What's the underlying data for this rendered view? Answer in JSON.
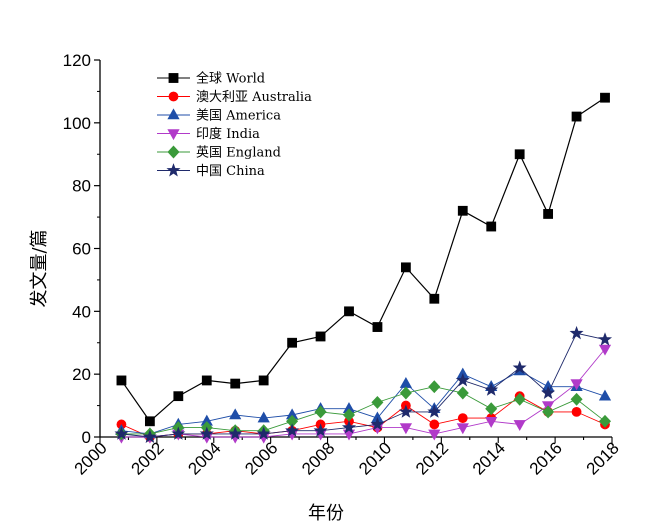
{
  "chart_data": {
    "type": "line",
    "title": "",
    "xlabel": "年份",
    "ylabel": "发文量/篇",
    "xlim": [
      2000,
      2018
    ],
    "ylim": [
      0,
      120
    ],
    "x_ticks": [
      "2000",
      "2002",
      "2004",
      "2006",
      "2008",
      "2010",
      "2012",
      "2014",
      "2016",
      "2018"
    ],
    "y_ticks": [
      "0",
      "20",
      "40",
      "60",
      "80",
      "100",
      "120"
    ],
    "x": [
      2001,
      2002,
      2003,
      2004,
      2005,
      2006,
      2007,
      2008,
      2009,
      2010,
      2011,
      2012,
      2013,
      2014,
      2015,
      2016,
      2017,
      2018
    ],
    "grid": false,
    "legend_position": "top-left",
    "series": [
      {
        "name": "全球 World",
        "color": "#000000",
        "marker": "square",
        "values": [
          18,
          5,
          13,
          18,
          17,
          18,
          30,
          32,
          40,
          35,
          54,
          44,
          72,
          67,
          90,
          71,
          102,
          108
        ]
      },
      {
        "name": "澳大利亚 Australia",
        "color": "#ff0000",
        "marker": "circle",
        "values": [
          4,
          0,
          1,
          1,
          2,
          1,
          2,
          4,
          5,
          3,
          10,
          4,
          6,
          6,
          13,
          8,
          8,
          4
        ]
      },
      {
        "name": "美国 America",
        "color": "#1f4ea8",
        "marker": "triangle-up",
        "values": [
          2,
          1,
          4,
          5,
          7,
          6,
          7,
          9,
          9,
          6,
          17,
          9,
          20,
          16,
          21,
          16,
          16,
          13
        ]
      },
      {
        "name": "印度 India",
        "color": "#b13ac9",
        "marker": "triangle-down",
        "values": [
          0,
          0,
          1,
          0,
          0,
          0,
          1,
          1,
          1,
          3,
          3,
          1,
          3,
          5,
          4,
          10,
          17,
          28
        ]
      },
      {
        "name": "英国 England",
        "color": "#3a9a3a",
        "marker": "diamond",
        "values": [
          1,
          1,
          3,
          3,
          2,
          2,
          5,
          8,
          7,
          11,
          14,
          16,
          14,
          9,
          12,
          8,
          12,
          5
        ]
      },
      {
        "name": "中国 China",
        "color": "#1f2a6b",
        "marker": "star",
        "values": [
          1,
          0,
          1,
          1,
          1,
          1,
          2,
          2,
          3,
          4,
          8,
          8,
          18,
          15,
          22,
          14,
          33,
          31
        ]
      }
    ]
  }
}
